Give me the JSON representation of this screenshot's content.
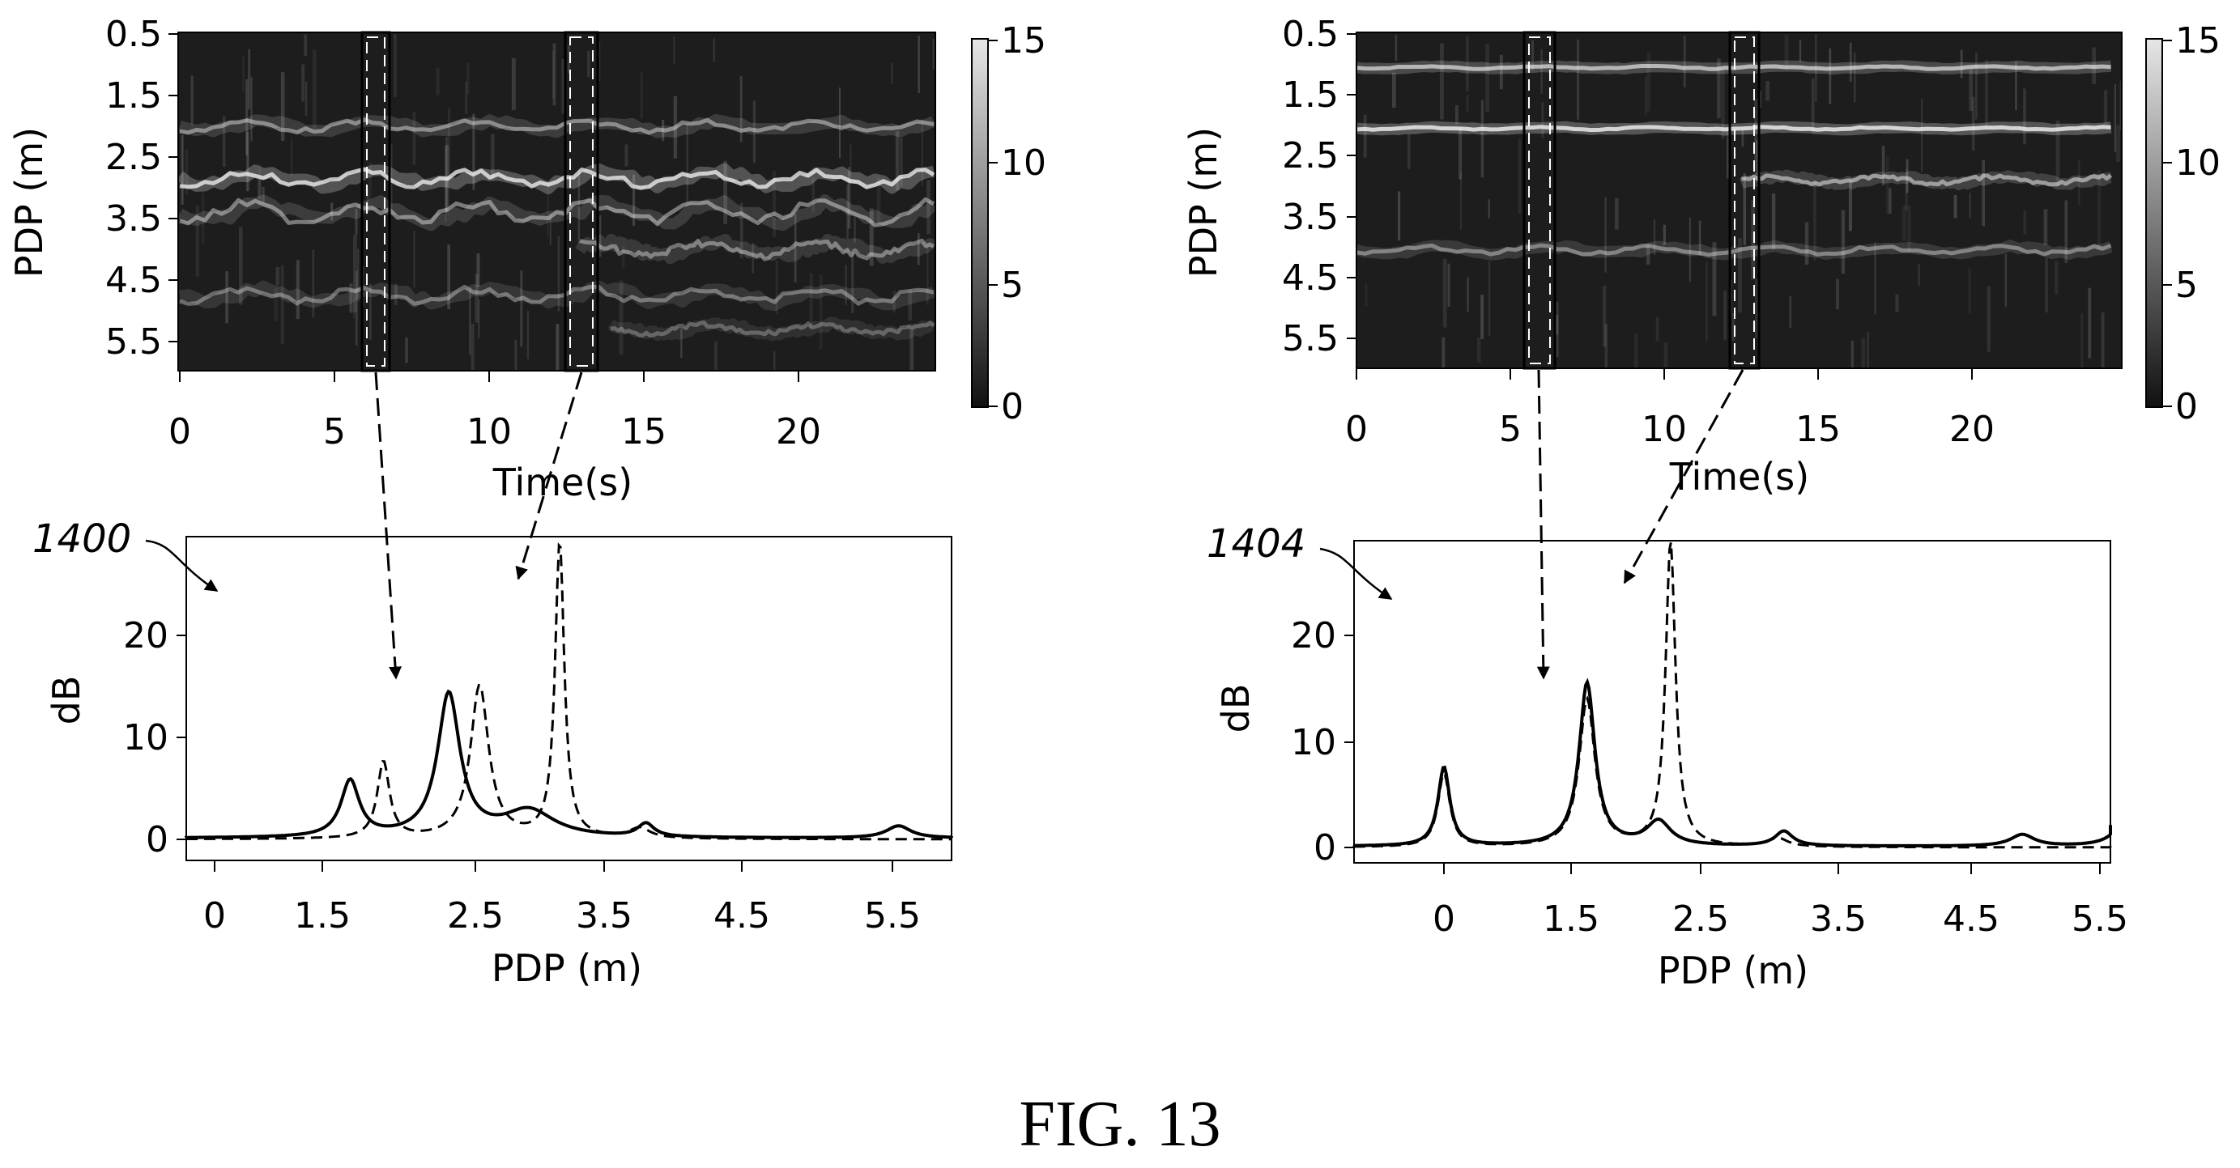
{
  "figure_caption": "FIG. 13",
  "colors": {
    "ink": "#000000",
    "heatmap_dark": "#1a1a1a",
    "heatmap_bright": "#ffffff"
  },
  "panels": [
    {
      "id": "left",
      "heatmap": {
        "ylabel": "PDP (m)",
        "xlabel": "Time(s)",
        "y_ticks": [
          "0.5",
          "1.5",
          "2.5",
          "3.5",
          "4.5",
          "5.5"
        ],
        "x_ticks": [
          "0",
          "5",
          "10",
          "15",
          "20"
        ],
        "colorbar_ticks": [
          "15",
          "10",
          "5",
          "0"
        ],
        "bright_bands": [
          {
            "pdp": 2.0,
            "start_s": 0,
            "end_s": 24.5,
            "intensity": 0.55,
            "drift": 0.2
          },
          {
            "pdp": 2.85,
            "start_s": 0,
            "end_s": 24.5,
            "intensity": 0.95,
            "drift": 0.3
          },
          {
            "pdp": 3.4,
            "start_s": 0,
            "end_s": 24.5,
            "intensity": 0.55,
            "drift": 0.4
          },
          {
            "pdp": 4.0,
            "start_s": 13,
            "end_s": 24.5,
            "intensity": 0.5,
            "drift": 0.3
          },
          {
            "pdp": 4.75,
            "start_s": 0,
            "end_s": 24.5,
            "intensity": 0.45,
            "drift": 0.3
          },
          {
            "pdp": 5.3,
            "start_s": 14,
            "end_s": 24.5,
            "intensity": 0.35,
            "drift": 0.2
          }
        ],
        "highlight_windows_s": [
          [
            5.9,
            6.8
          ],
          [
            12.5,
            13.5
          ]
        ]
      },
      "spectrum": {
        "ref_label": "1400",
        "ylabel": "dB",
        "xlabel": "PDP (m)",
        "y_ticks": [
          "0",
          "10",
          "20"
        ],
        "x_ticks": [
          "0",
          "1.5",
          "2.5",
          "3.5",
          "4.5",
          "5.5"
        ],
        "solid_peaks": [
          {
            "x": 1.1,
            "db": 5.5,
            "width": 0.09
          },
          {
            "x": 1.9,
            "db": 14.0,
            "width": 0.11
          },
          {
            "x": 2.55,
            "db": 2.6,
            "width": 0.25
          },
          {
            "x": 3.5,
            "db": 1.3,
            "width": 0.08
          },
          {
            "x": 5.55,
            "db": 1.2,
            "width": 0.12
          }
        ],
        "dashed_peaks": [
          {
            "x": 1.37,
            "db": 7.5,
            "width": 0.06
          },
          {
            "x": 2.15,
            "db": 15.0,
            "width": 0.09
          },
          {
            "x": 2.8,
            "db": 29.0,
            "width": 0.045
          },
          {
            "x": 3.45,
            "db": 1.0,
            "width": 0.1
          }
        ]
      }
    },
    {
      "id": "right",
      "heatmap": {
        "ylabel": "PDP (m)",
        "xlabel": "Time(s)",
        "y_ticks": [
          "0.5",
          "1.5",
          "2.5",
          "3.5",
          "4.5",
          "5.5"
        ],
        "x_ticks": [
          "0",
          "5",
          "10",
          "15",
          "20"
        ],
        "colorbar_ticks": [
          "15",
          "10",
          "5",
          "0"
        ],
        "bright_bands": [
          {
            "pdp": 1.05,
            "start_s": 0,
            "end_s": 24.5,
            "intensity": 0.8,
            "drift": 0.05
          },
          {
            "pdp": 2.05,
            "start_s": 0,
            "end_s": 24.5,
            "intensity": 1.0,
            "drift": 0.05
          },
          {
            "pdp": 2.9,
            "start_s": 12.5,
            "end_s": 24.5,
            "intensity": 0.65,
            "drift": 0.15
          },
          {
            "pdp": 4.05,
            "start_s": 0,
            "end_s": 24.5,
            "intensity": 0.5,
            "drift": 0.15
          }
        ],
        "highlight_windows_s": [
          [
            5.4,
            6.4
          ],
          [
            12.2,
            13.1
          ]
        ]
      },
      "spectrum": {
        "ref_label": "1404",
        "ylabel": "dB",
        "xlabel": "PDP (m)",
        "y_ticks": [
          "0",
          "10",
          "20"
        ],
        "x_ticks": [
          "0",
          "1.5",
          "2.5",
          "3.5",
          "4.5",
          "5.5"
        ],
        "solid_peaks": [
          {
            "x": 0.0,
            "db": 7.5,
            "width": 0.06
          },
          {
            "x": 1.2,
            "db": 15.5,
            "width": 0.08
          },
          {
            "x": 1.8,
            "db": 2.3,
            "width": 0.12
          },
          {
            "x": 2.85,
            "db": 1.4,
            "width": 0.09
          },
          {
            "x": 4.85,
            "db": 1.1,
            "width": 0.12
          },
          {
            "x": 5.7,
            "db": 2.0,
            "width": 0.12
          }
        ],
        "dashed_peaks": [
          {
            "x": 0.0,
            "db": 7.0,
            "width": 0.06
          },
          {
            "x": 1.2,
            "db": 14.0,
            "width": 0.08
          },
          {
            "x": 1.9,
            "db": 29.0,
            "width": 0.05
          },
          {
            "x": 2.8,
            "db": 0.8,
            "width": 0.1
          }
        ]
      }
    }
  ]
}
